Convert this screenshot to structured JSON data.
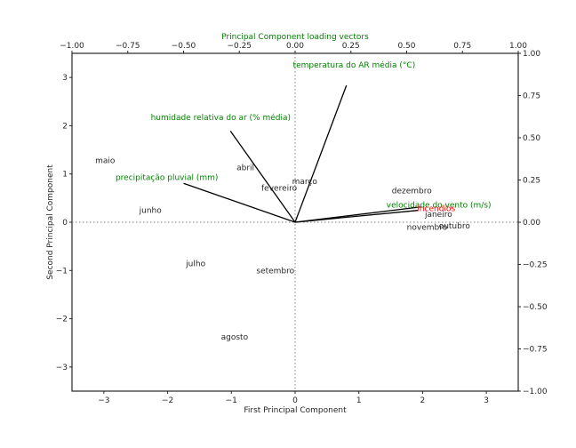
{
  "chart_data": {
    "type": "scatter",
    "title": "",
    "xlabel": "First Principal Component",
    "ylabel": "Second Principal Component",
    "top_axis_label": "Principal Component loading vectors",
    "xlim": [
      -3.5,
      3.5
    ],
    "ylim": [
      -3.5,
      3.5
    ],
    "loading_lim": [
      -1.0,
      1.0
    ],
    "x_ticks": [
      -3,
      -2,
      -1,
      0,
      1,
      2,
      3
    ],
    "y_ticks": [
      -3,
      -2,
      -1,
      0,
      1,
      2,
      3
    ],
    "x_tick_labels": [
      "−3",
      "−2",
      "−1",
      "0",
      "1",
      "2",
      "3"
    ],
    "y_tick_labels": [
      "−3",
      "−2",
      "−1",
      "0",
      "1",
      "2",
      "3"
    ],
    "top_ticks": [
      -1.0,
      -0.75,
      -0.5,
      -0.25,
      0.0,
      0.25,
      0.5,
      0.75,
      1.0
    ],
    "top_tick_labels": [
      "−1.00",
      "−0.75",
      "−0.50",
      "−0.25",
      "0.00",
      "0.25",
      "0.50",
      "0.75",
      "1.00"
    ],
    "right_ticks": [
      -1.0,
      -0.75,
      -0.5,
      -0.25,
      0.0,
      0.25,
      0.5,
      0.75,
      1.0
    ],
    "right_tick_labels": [
      "−1.00",
      "−0.75",
      "−0.50",
      "−0.25",
      "0.00",
      "0.25",
      "0.50",
      "0.75",
      "1.00"
    ],
    "grid": false,
    "zero_lines": true,
    "observations": [
      {
        "label": "maio",
        "x": -2.98,
        "y": 1.28
      },
      {
        "label": "abril",
        "x": -0.78,
        "y": 1.13
      },
      {
        "label": "março",
        "x": 0.15,
        "y": 0.85
      },
      {
        "label": "fevereiro",
        "x": -0.25,
        "y": 0.71
      },
      {
        "label": "junho",
        "x": -2.27,
        "y": 0.25
      },
      {
        "label": "dezembro",
        "x": 1.83,
        "y": 0.65
      },
      {
        "label": "janeiro",
        "x": 2.25,
        "y": 0.17
      },
      {
        "label": "novembro",
        "x": 2.07,
        "y": -0.1
      },
      {
        "label": "outubro",
        "x": 2.5,
        "y": -0.07
      },
      {
        "label": "julho",
        "x": -1.56,
        "y": -0.86
      },
      {
        "label": "setembro",
        "x": -0.31,
        "y": -1.0
      },
      {
        "label": "agosto",
        "x": -0.95,
        "y": -2.38
      }
    ],
    "loading_vectors": [
      {
        "label": "temperatura do AR média (°C)",
        "x": 0.23,
        "y": 0.81,
        "color": "#008000"
      },
      {
        "label": "humidade relativa do ar (% média)",
        "x": -0.29,
        "y": 0.54,
        "color": "#008000"
      },
      {
        "label": "precipitação pluvial (mm)",
        "x": -0.5,
        "y": 0.23,
        "color": "#008000"
      },
      {
        "label": "velocidade do vento (m/s)",
        "x": 0.56,
        "y": 0.09,
        "color": "#008000"
      },
      {
        "label": "incendios",
        "x": 0.55,
        "y": 0.07,
        "color": "#ff0000"
      }
    ],
    "colors": {
      "axis": "#262626",
      "vector_line": "#000000",
      "zero_line": "#808080"
    }
  }
}
